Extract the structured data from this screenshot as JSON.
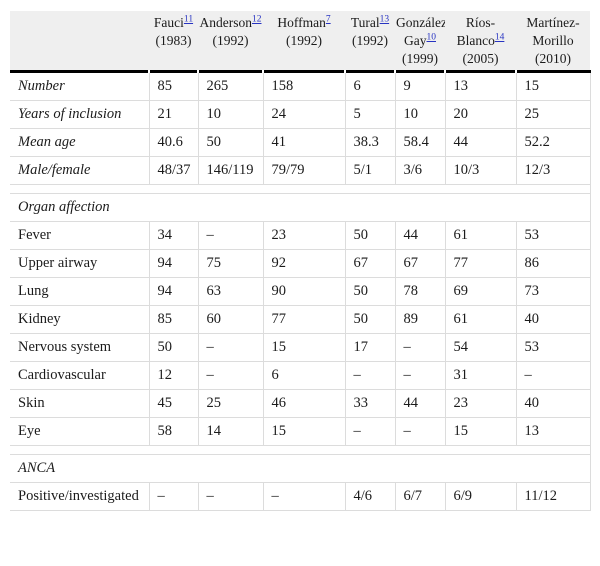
{
  "colors": {
    "header_bg": "#efefef",
    "grid_line": "#dcdcdc",
    "header_rule": "#000000",
    "reference_link": "#2733c2",
    "text": "#1b1b1b"
  },
  "table": {
    "corner_label": "",
    "columns": [
      {
        "name": "Fauci",
        "ref": "11",
        "year": "(1983)"
      },
      {
        "name": "Anderson",
        "ref": "12",
        "year": "(1992)"
      },
      {
        "name": "Hoffman",
        "ref": "7",
        "year": "(1992)"
      },
      {
        "name": "Tural",
        "ref": "13",
        "year": "(1992)"
      },
      {
        "name": "González-Gay",
        "ref": "10",
        "year": "(1999)"
      },
      {
        "name": "Ríos-Blanco",
        "ref": "14",
        "year": "(2005)"
      },
      {
        "name": "Martínez-Morillo",
        "ref": "",
        "year": "(2010)"
      }
    ],
    "rows": [
      {
        "type": "data",
        "label": "Number",
        "italic": true,
        "values": [
          "85",
          "265",
          "158",
          "6",
          "9",
          "13",
          "15"
        ]
      },
      {
        "type": "data",
        "label": "Years of inclusion",
        "italic": true,
        "values": [
          "21",
          "10",
          "24",
          "5",
          "10",
          "20",
          "25"
        ]
      },
      {
        "type": "data",
        "label": "Mean age",
        "italic": true,
        "values": [
          "40.6",
          "50",
          "41",
          "38.3",
          "58.4",
          "44",
          "52.2"
        ]
      },
      {
        "type": "data",
        "label": "Male/female",
        "italic": true,
        "values": [
          "48/37",
          "146/119",
          "79/79",
          "5/1",
          "3/6",
          "10/3",
          "12/3"
        ]
      },
      {
        "type": "spacer",
        "label": ""
      },
      {
        "type": "section",
        "label": "Organ affection"
      },
      {
        "type": "data",
        "label": "Fever",
        "italic": false,
        "values": [
          "34",
          "–",
          "23",
          "50",
          "44",
          "61",
          "53"
        ]
      },
      {
        "type": "data",
        "label": "Upper airway",
        "italic": false,
        "values": [
          "94",
          "75",
          "92",
          "67",
          "67",
          "77",
          "86"
        ]
      },
      {
        "type": "data",
        "label": "Lung",
        "italic": false,
        "values": [
          "94",
          "63",
          "90",
          "50",
          "78",
          "69",
          "73"
        ]
      },
      {
        "type": "data",
        "label": "Kidney",
        "italic": false,
        "values": [
          "85",
          "60",
          "77",
          "50",
          "89",
          "61",
          "40"
        ]
      },
      {
        "type": "data",
        "label": "Nervous system",
        "italic": false,
        "values": [
          "50",
          "–",
          "15",
          "17",
          "–",
          "54",
          "53"
        ]
      },
      {
        "type": "data",
        "label": "Cardiovascular",
        "italic": false,
        "values": [
          "12",
          "–",
          "6",
          "–",
          "–",
          "31",
          "–"
        ]
      },
      {
        "type": "data",
        "label": "Skin",
        "italic": false,
        "values": [
          "45",
          "25",
          "46",
          "33",
          "44",
          "23",
          "40"
        ]
      },
      {
        "type": "data",
        "label": "Eye",
        "italic": false,
        "values": [
          "58",
          "14",
          "15",
          "–",
          "–",
          "15",
          "13"
        ]
      },
      {
        "type": "spacer",
        "label": ""
      },
      {
        "type": "section",
        "label": "ANCA"
      },
      {
        "type": "data",
        "label": "Positive/investigated",
        "italic": false,
        "values": [
          "–",
          "–",
          "–",
          "4/6",
          "6/7",
          "6/9",
          "11/12"
        ]
      }
    ]
  }
}
